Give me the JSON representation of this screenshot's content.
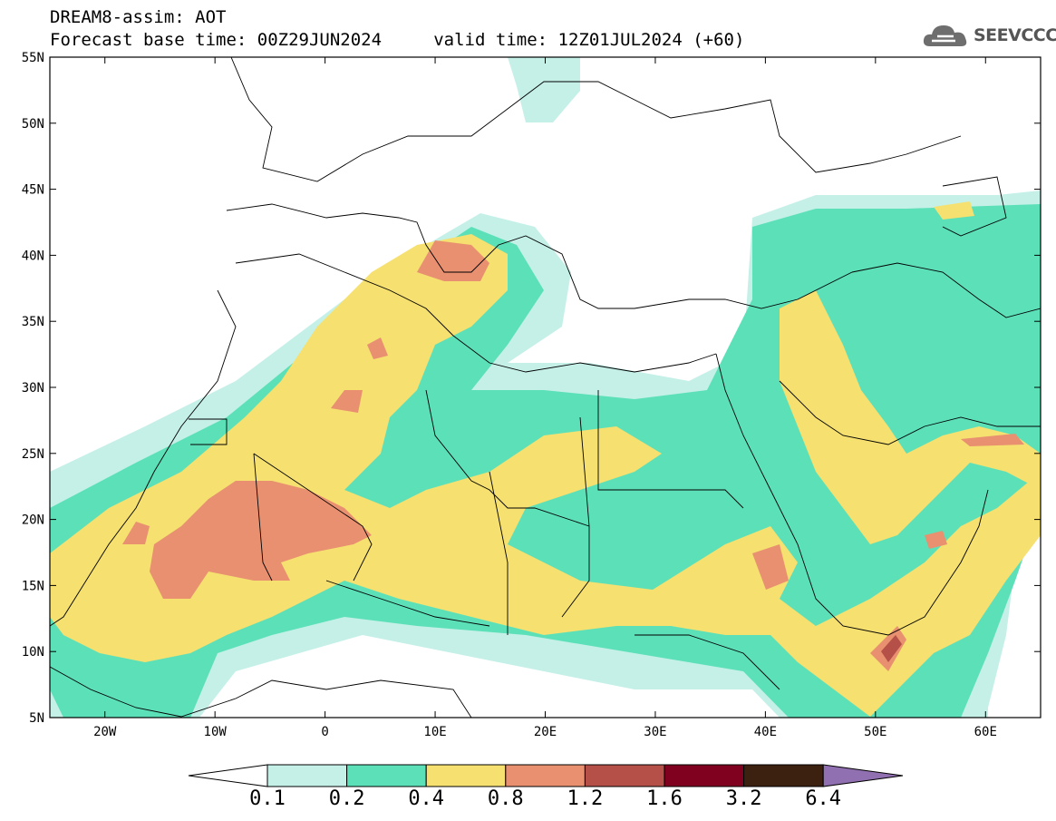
{
  "header": {
    "line1": "DREAM8-assim: AOT",
    "line2": "Forecast base time: 00Z29JUN2024     valid time: 12Z01JUL2024 (+60)"
  },
  "logo": {
    "text": "SEEVCCC",
    "icon": "cloud-icon"
  },
  "map": {
    "lat_labels": [
      "55N",
      "50N",
      "45N",
      "40N",
      "35N",
      "30N",
      "25N",
      "20N",
      "15N",
      "10N",
      "5N"
    ],
    "lon_labels": [
      "20W",
      "10W",
      "0",
      "10E",
      "20E",
      "30E",
      "40E",
      "50E",
      "60E"
    ],
    "lat_range": [
      5,
      55
    ],
    "lon_range": [
      -25,
      65
    ]
  },
  "colorbar": {
    "levels": [
      "0.1",
      "0.2",
      "0.4",
      "0.8",
      "1.2",
      "1.6",
      "3.2",
      "6.4"
    ],
    "colors": [
      "#c4f0e8",
      "#5ce0b8",
      "#f5e070",
      "#e89070",
      "#b45048",
      "#800020",
      "#3c2010",
      "#9070b0"
    ]
  },
  "colors": {
    "very_light": "#c4f0e8",
    "green": "#5ce0b8",
    "yellow": "#f5e070",
    "orange": "#e89070",
    "brown": "#b45048"
  }
}
